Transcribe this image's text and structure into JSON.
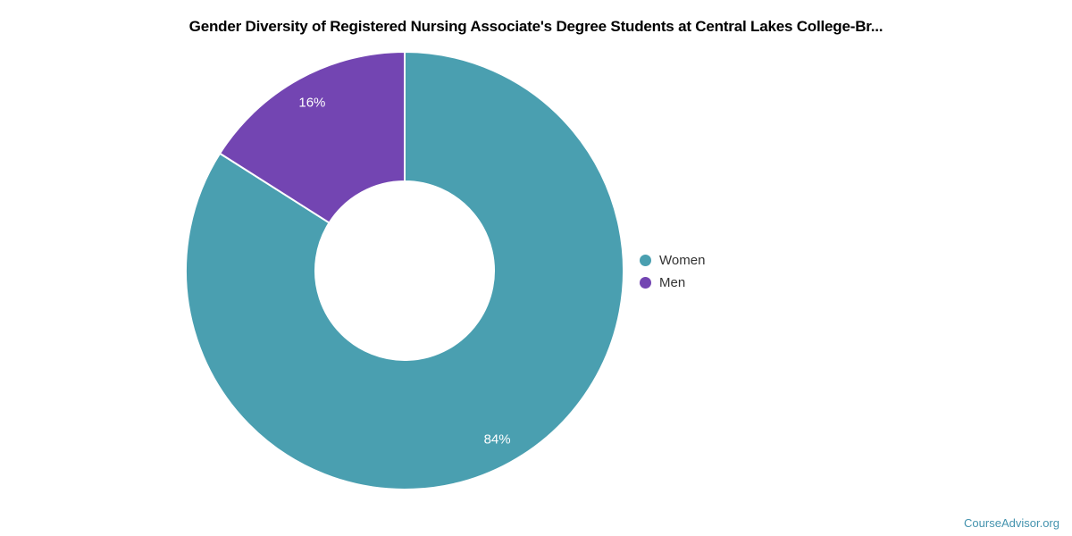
{
  "page": {
    "background": "#ffffff",
    "watermark_text": "CourseAdvisor.org",
    "watermark_color": "#4493ae"
  },
  "chart_data": {
    "type": "pie",
    "subtype": "donut",
    "title": "Gender Diversity of Registered Nursing Associate's Degree Students at Central Lakes College-Br...",
    "title_color": "#000000",
    "series": [
      {
        "name": "Women",
        "value": 84,
        "data_label": "84%",
        "color": "#4a9fb0"
      },
      {
        "name": "Men",
        "value": 16,
        "data_label": "16%",
        "color": "#7345b2"
      }
    ],
    "start_angle_deg": 0,
    "direction": "clockwise",
    "data_label_color": "#ffffff",
    "slice_border_color": "#ffffff",
    "legend_position": "right",
    "legend_text_color": "#333333"
  }
}
